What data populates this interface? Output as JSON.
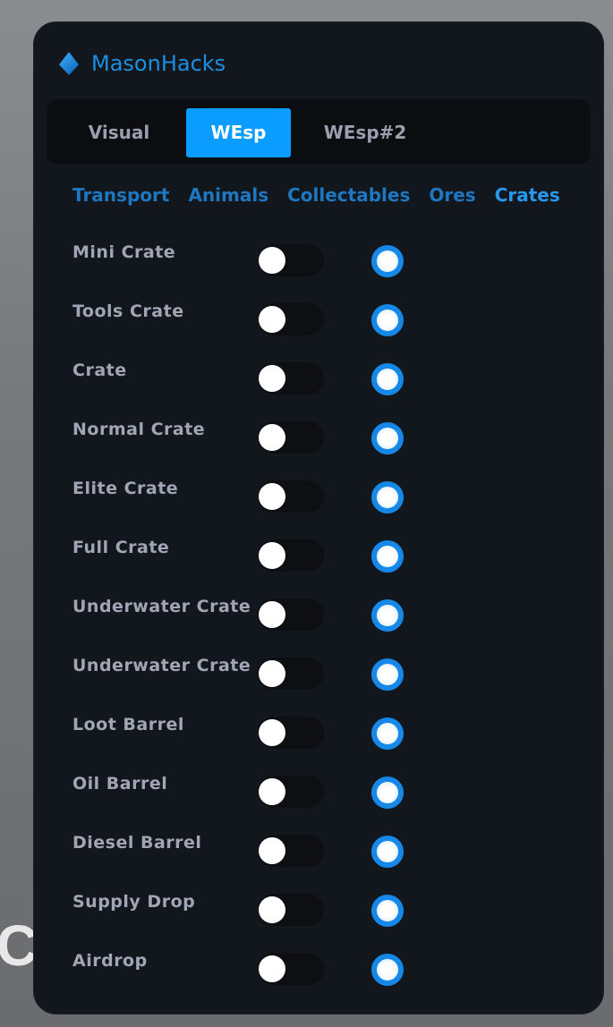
{
  "background_text": "CT",
  "app": {
    "title": "MasonHacks",
    "icon": "diamond-logo-icon",
    "accent": "#0a9cff"
  },
  "tabs": [
    {
      "label": "Visual",
      "active": false
    },
    {
      "label": "WEsp",
      "active": true
    },
    {
      "label": "WEsp#2",
      "active": false
    }
  ],
  "categories": [
    {
      "label": "Transport"
    },
    {
      "label": "Animals"
    },
    {
      "label": "Collectables"
    },
    {
      "label": "Ores"
    },
    {
      "label": "Crates",
      "active": true
    }
  ],
  "items": [
    {
      "label": "Mini Crate",
      "toggle": false,
      "radio": true
    },
    {
      "label": "Tools Crate",
      "toggle": false,
      "radio": true
    },
    {
      "label": "Crate",
      "toggle": false,
      "radio": true
    },
    {
      "label": "Normal Crate",
      "toggle": false,
      "radio": true
    },
    {
      "label": "Elite Crate",
      "toggle": false,
      "radio": true
    },
    {
      "label": "Full Crate",
      "toggle": false,
      "radio": true
    },
    {
      "label": "Underwater Crate",
      "toggle": false,
      "radio": true
    },
    {
      "label": "Underwater Crate",
      "toggle": false,
      "radio": true
    },
    {
      "label": "Loot Barrel",
      "toggle": false,
      "radio": true
    },
    {
      "label": "Oil Barrel",
      "toggle": false,
      "radio": true
    },
    {
      "label": "Diesel Barrel",
      "toggle": false,
      "radio": true
    },
    {
      "label": "Supply Drop",
      "toggle": false,
      "radio": true
    },
    {
      "label": "Airdrop",
      "toggle": false,
      "radio": true
    }
  ]
}
